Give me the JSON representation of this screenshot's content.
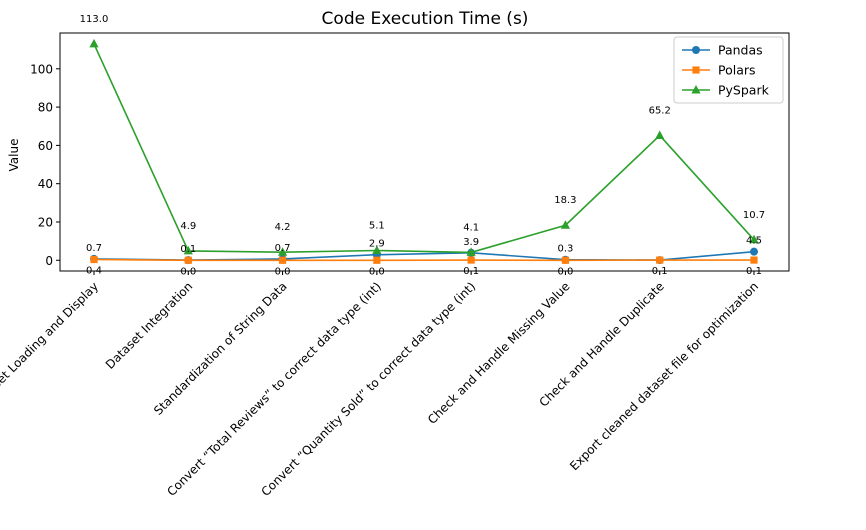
{
  "chart_data": {
    "type": "line",
    "title": "Code Execution Time (s)",
    "xlabel": "",
    "ylabel": "Value",
    "categories": [
      "Dataset Loading and Display",
      "Dataset Integration",
      "Standardization of String Data",
      "Convert “Total Reviews” to correct data type (int)",
      "Convert “Quantity Sold” to correct data type (int)",
      "Check and Handle Missing Value",
      "Check and Handle Duplicate",
      "Export cleaned dataset file for optimization"
    ],
    "series": [
      {
        "name": "Pandas",
        "color": "#1f77b4",
        "marker": "circle",
        "values": [
          0.7,
          0.1,
          0.7,
          2.9,
          3.9,
          0.3,
          0.1,
          4.5
        ],
        "labels": [
          "0.7",
          "0.1",
          "0.7",
          "2.9",
          "3.9",
          "0.3",
          "",
          "4.5"
        ]
      },
      {
        "name": "Polars",
        "color": "#ff7f0e",
        "marker": "square",
        "values": [
          0.4,
          0.0,
          0.0,
          0.0,
          0.1,
          0.0,
          0.1,
          0.1
        ],
        "labels": [
          "0.4",
          "0.0",
          "0.0",
          "0.0",
          "0.1",
          "0.0",
          "0.1",
          "0.1"
        ]
      },
      {
        "name": "PySpark",
        "color": "#2ca02c",
        "marker": "triangle",
        "values": [
          113.0,
          4.9,
          4.2,
          5.1,
          4.1,
          18.3,
          65.2,
          10.7
        ],
        "labels": [
          "113.0",
          "4.9",
          "4.2",
          "5.1",
          "4.1",
          "18.3",
          "65.2",
          "10.7"
        ]
      }
    ],
    "yticks": [
      0,
      20,
      40,
      60,
      80,
      100
    ],
    "ylim": [
      -5.6,
      118.7
    ],
    "grid": false,
    "legend": "top-right"
  }
}
